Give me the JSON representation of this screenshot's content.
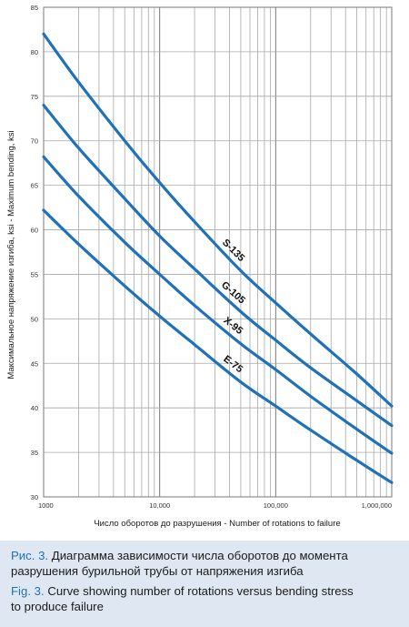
{
  "chart_data": {
    "type": "line",
    "xlabel": "Число оборотов до разрушения - Number of rotations to failure",
    "ylabel": "Максимальное напряжение изгиба, ksi - Maximum bending, ksi",
    "x_scale": "log",
    "xlim": [
      1000,
      1000000
    ],
    "ylim": [
      30,
      85
    ],
    "x_ticks": [
      1000,
      10000,
      100000,
      1000000
    ],
    "x_tick_labels": [
      "1000",
      "10,000",
      "100,000",
      "1,000,000"
    ],
    "y_ticks": [
      30,
      35,
      40,
      45,
      50,
      55,
      60,
      65,
      70,
      75,
      80,
      85
    ],
    "y_tick_labels": [
      "30",
      "35",
      "40",
      "45",
      "50",
      "55",
      "60",
      "65",
      "70",
      "75",
      "80",
      "85"
    ],
    "grid": true,
    "line_color": "#1f72b8",
    "series": [
      {
        "name": "S-135",
        "x": [
          1000,
          2000,
          5000,
          10000,
          20000,
          50000,
          100000,
          200000,
          500000,
          1000000
        ],
        "y": [
          82.0,
          76.6,
          70.0,
          65.3,
          60.9,
          55.4,
          51.8,
          48.3,
          43.8,
          40.2
        ]
      },
      {
        "name": "G-105",
        "x": [
          1000,
          2000,
          5000,
          10000,
          20000,
          50000,
          100000,
          200000,
          500000,
          1000000
        ],
        "y": [
          74.0,
          69.2,
          63.5,
          59.3,
          55.6,
          50.8,
          47.6,
          44.5,
          40.8,
          38.0
        ]
      },
      {
        "name": "X-95",
        "x": [
          1000,
          2000,
          5000,
          10000,
          20000,
          50000,
          100000,
          200000,
          500000,
          1000000
        ],
        "y": [
          68.2,
          63.8,
          58.6,
          55.0,
          51.5,
          47.2,
          44.3,
          41.3,
          37.6,
          34.9
        ]
      },
      {
        "name": "E-75",
        "x": [
          1000,
          2000,
          5000,
          10000,
          20000,
          50000,
          100000,
          200000,
          500000,
          1000000
        ],
        "y": [
          62.2,
          58.4,
          53.7,
          50.3,
          47.1,
          42.9,
          40.2,
          37.5,
          34.1,
          31.6
        ]
      }
    ]
  },
  "caption": {
    "ru_lead": "Рис. 3.",
    "ru_line1": " Диаграмма зависимости числа оборотов до момента",
    "ru_line2": "разрушения бурильной трубы от напряжения изгиба",
    "en_lead": "Fig. 3.",
    "en_line1": " Curve showing number of rotations versus bending stress",
    "en_line2": "to produce failure"
  }
}
